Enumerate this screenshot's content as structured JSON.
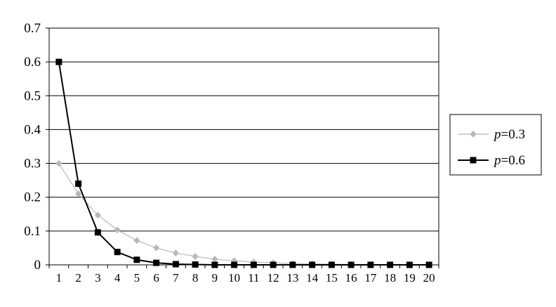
{
  "chart_data": {
    "type": "line",
    "x": [
      1,
      2,
      3,
      4,
      5,
      6,
      7,
      8,
      9,
      10,
      11,
      12,
      13,
      14,
      15,
      16,
      17,
      18,
      19,
      20
    ],
    "ylim": [
      0,
      0.7
    ],
    "yticks": [
      "0",
      "0.1",
      "0.2",
      "0.3",
      "0.4",
      "0.5",
      "0.6",
      "0.7"
    ],
    "xticks": [
      "1",
      "2",
      "3",
      "4",
      "5",
      "6",
      "7",
      "8",
      "9",
      "10",
      "11",
      "12",
      "13",
      "14",
      "15",
      "16",
      "17",
      "18",
      "19",
      "20"
    ],
    "grid": "horizontal",
    "legend_position": "right",
    "series": [
      {
        "name": "p=0.3",
        "name_var": "p",
        "name_rest": "=0.3",
        "color": "#b8b8b8",
        "marker": "diamond",
        "values": [
          0.3,
          0.21,
          0.147,
          0.103,
          0.072,
          0.05,
          0.035,
          0.025,
          0.017,
          0.012,
          0.008,
          0.006,
          0.004,
          0.003,
          0.002,
          0.001,
          0.001,
          0.001,
          0.0,
          0.0
        ]
      },
      {
        "name": "p=0.6",
        "name_var": "p",
        "name_rest": "=0.6",
        "color": "#000000",
        "marker": "square",
        "values": [
          0.6,
          0.24,
          0.096,
          0.038,
          0.015,
          0.006,
          0.002,
          0.001,
          0.0,
          0.0,
          0.0,
          0.0,
          0.0,
          0.0,
          0.0,
          0.0,
          0.0,
          0.0,
          0.0,
          0.0
        ]
      }
    ]
  }
}
